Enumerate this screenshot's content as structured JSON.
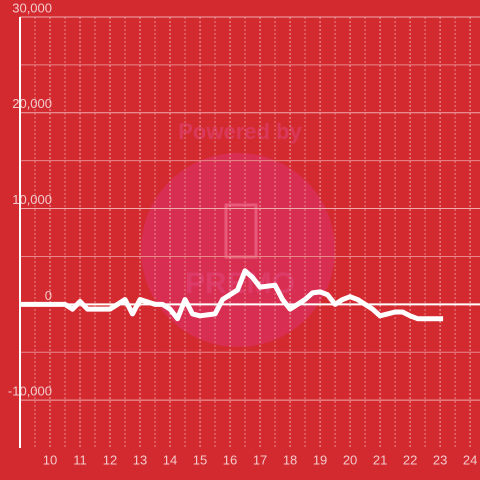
{
  "chart_data": {
    "type": "line",
    "watermark": [
      "Powered by",
      "PREMO"
    ],
    "x": [
      9,
      9.5,
      10,
      10.5,
      10.75,
      11,
      11.25,
      11.5,
      12,
      12.25,
      12.5,
      12.75,
      13,
      13.5,
      13.75,
      14,
      14.25,
      14.5,
      14.75,
      15,
      15.5,
      15.75,
      16,
      16.25,
      16.5,
      16.75,
      17,
      17.5,
      17.75,
      18,
      18.25,
      18.5,
      18.75,
      19,
      19.25,
      19.5,
      19.75,
      20,
      20.25,
      20.5,
      20.75,
      21,
      21.25,
      21.5,
      21.75,
      22,
      22.25,
      22.5,
      23,
      23.1
    ],
    "series": [
      {
        "color": "#ffffff",
        "values": [
          0,
          0,
          0,
          0,
          -500,
          300,
          -500,
          -500,
          -500,
          0,
          500,
          -1000,
          500,
          0,
          0,
          -500,
          -1500,
          500,
          -1000,
          -1200,
          -1000,
          500,
          1000,
          1500,
          3500,
          2800,
          1800,
          2000,
          500,
          -500,
          0,
          500,
          1200,
          1300,
          1000,
          0,
          500,
          800,
          500,
          0,
          -500,
          -1200,
          -1000,
          -800,
          -800,
          -1200,
          -1500,
          -1500,
          -1500,
          -1500
        ]
      }
    ],
    "xlim": [
      9,
      24.33
    ],
    "xticks": [
      10,
      11,
      12,
      13,
      14,
      15,
      16,
      17,
      18,
      19,
      20,
      21,
      22,
      23,
      24
    ],
    "xminor": [
      9.5,
      10.5,
      11.5,
      12.5,
      13.5,
      14.5,
      15.5,
      16.5,
      17.5,
      18.5,
      19.5,
      20.5,
      21.5,
      22.5,
      23.5
    ],
    "ylim": [
      -15000,
      30000
    ],
    "yticks": [
      {
        "value": -10000,
        "label": "-10,000"
      },
      0,
      {
        "value": 10000,
        "label": "10,000"
      },
      {
        "value": 20000,
        "label": "20,000"
      },
      {
        "value": 30000,
        "label": "30,000"
      }
    ],
    "yminor": [
      -5000,
      5000,
      15000,
      25000
    ],
    "grid": true
  }
}
